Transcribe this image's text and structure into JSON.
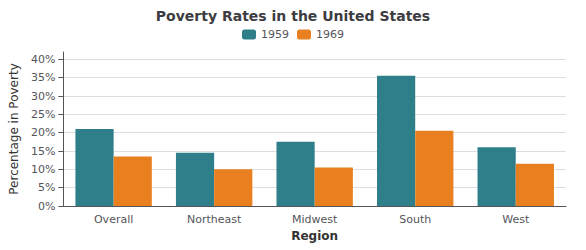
{
  "chart_data": {
    "type": "bar",
    "title": "Poverty Rates in the United States",
    "xlabel": "Region",
    "ylabel": "Percentage in Poverty",
    "categories": [
      "Overall",
      "Northeast",
      "Midwest",
      "South",
      "West"
    ],
    "series": [
      {
        "name": "1959",
        "color": "#2e7f8a",
        "values": [
          21.0,
          14.5,
          17.5,
          35.5,
          16.0
        ]
      },
      {
        "name": "1969",
        "color": "#e88020",
        "values": [
          13.5,
          10.0,
          10.5,
          20.5,
          11.5
        ]
      }
    ],
    "ylim": [
      0,
      42
    ],
    "yticks": [
      {
        "value": 0,
        "label": "0%"
      },
      {
        "value": 5,
        "label": "5%"
      },
      {
        "value": 10,
        "label": "10%"
      },
      {
        "value": 15,
        "label": "15%"
      },
      {
        "value": 20,
        "label": "20%"
      },
      {
        "value": 25,
        "label": "25%"
      },
      {
        "value": 30,
        "label": "30%"
      },
      {
        "value": 35,
        "label": "35%"
      },
      {
        "value": 40,
        "label": "40%"
      }
    ],
    "grid": true,
    "legend": "top"
  }
}
